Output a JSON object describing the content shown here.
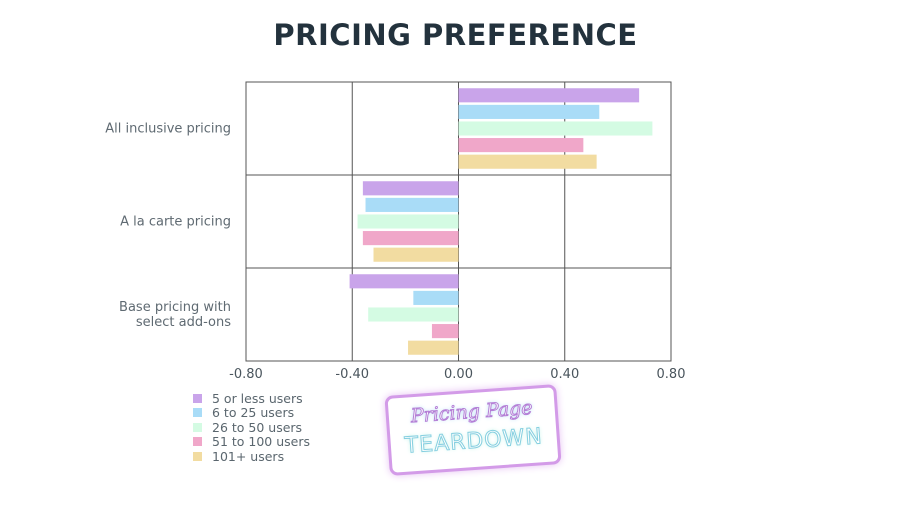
{
  "page_title": "PRICING PREFERENCE",
  "colors": [
    "#c9a4ea",
    "#a9dcf7",
    "#d4fbe3",
    "#f0a7c9",
    "#f2dca1"
  ],
  "chart_data": {
    "type": "bar",
    "orientation": "horizontal",
    "title": "PRICING PREFERENCE",
    "categories": [
      "All inclusive pricing",
      "A la carte pricing",
      "Base pricing with select add-ons"
    ],
    "category_lines": [
      [
        "All inclusive pricing"
      ],
      [
        "A la carte pricing"
      ],
      [
        "Base pricing with",
        "select add-ons"
      ]
    ],
    "series": [
      {
        "name": "5 or less users",
        "values": [
          0.68,
          -0.36,
          -0.41
        ]
      },
      {
        "name": "6 to 25 users",
        "values": [
          0.53,
          -0.35,
          -0.17
        ]
      },
      {
        "name": "26 to 50 users",
        "values": [
          0.73,
          -0.38,
          -0.34
        ]
      },
      {
        "name": "51 to 100 users",
        "values": [
          0.47,
          -0.36,
          -0.1
        ]
      },
      {
        "name": "101+ users",
        "values": [
          0.52,
          -0.32,
          -0.19
        ]
      }
    ],
    "xlim": [
      -0.8,
      0.8
    ],
    "xticks": [
      -0.8,
      -0.4,
      0.0,
      0.4,
      0.8
    ],
    "xtick_labels": [
      "-0.80",
      "-0.40",
      "0.00",
      "0.40",
      "0.80"
    ],
    "grid": true,
    "legend_position": "bottom-left"
  },
  "badge": {
    "line1": "Pricing Page",
    "line2": "TEARDOWN"
  }
}
